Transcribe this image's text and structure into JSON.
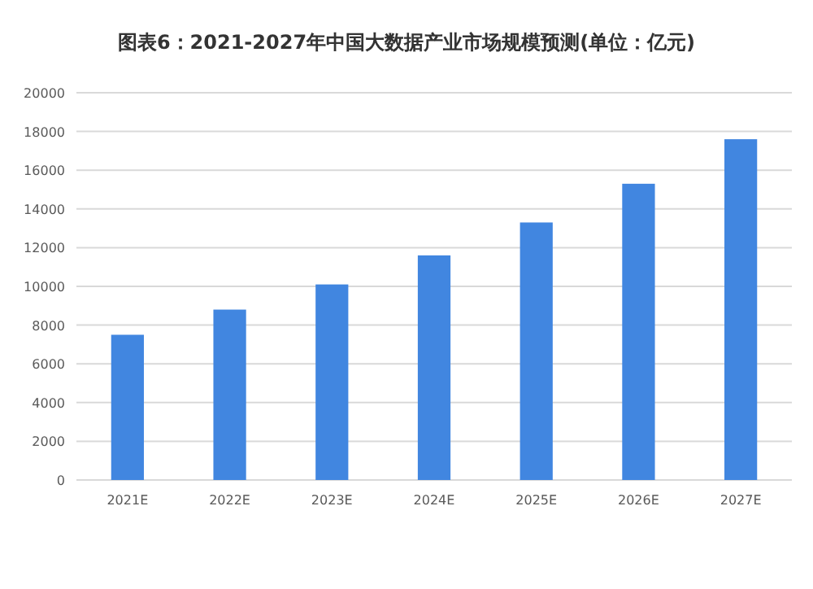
{
  "chart_data": {
    "type": "bar",
    "title": "图表6：2021-2027年中国大数据产业市场规模预测(单位：亿元)",
    "categories": [
      "2021E",
      "2022E",
      "2023E",
      "2024E",
      "2025E",
      "2026E",
      "2027E"
    ],
    "values": [
      7500,
      8800,
      10100,
      11600,
      13300,
      15300,
      17600
    ],
    "color": "#4186e0",
    "ylim": [
      0,
      20000
    ],
    "yticks": [
      0,
      2000,
      4000,
      6000,
      8000,
      10000,
      12000,
      14000,
      16000,
      18000,
      20000
    ],
    "grid": "y"
  }
}
